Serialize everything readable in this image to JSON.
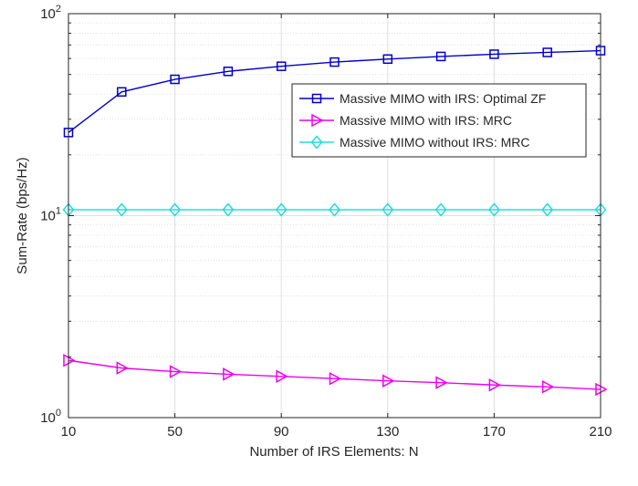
{
  "chart_data": {
    "type": "line",
    "title": "",
    "xlabel": "Number of IRS Elements: N",
    "ylabel": "Sum-Rate (bps/Hz)",
    "xlim": [
      10,
      210
    ],
    "ylim": [
      1,
      100
    ],
    "yscale": "log",
    "grid": true,
    "legend_position": "top-right",
    "x_ticks": [
      10,
      50,
      90,
      130,
      170,
      210
    ],
    "x_tick_labels": [
      "10",
      "50",
      "90",
      "130",
      "170",
      "210"
    ],
    "y_ticks": [
      {
        "base": "10",
        "exp": "0",
        "value": 1
      },
      {
        "base": "10",
        "exp": "1",
        "value": 10
      },
      {
        "base": "10",
        "exp": "2",
        "value": 100
      }
    ],
    "x": [
      10,
      30,
      50,
      70,
      90,
      110,
      130,
      150,
      170,
      190,
      210
    ],
    "series": [
      {
        "name": "Massive MIMO with IRS: Optimal ZF",
        "color": "#0000cc",
        "marker": "square",
        "values": [
          25.8,
          41.0,
          47.3,
          51.8,
          54.9,
          57.6,
          59.6,
          61.4,
          63.0,
          64.3,
          65.6
        ]
      },
      {
        "name": "Massive MIMO with IRS: MRC",
        "color": "#ee00ee",
        "marker": "triangle-right",
        "values": [
          1.92,
          1.76,
          1.69,
          1.64,
          1.6,
          1.56,
          1.52,
          1.49,
          1.45,
          1.42,
          1.38
        ]
      },
      {
        "name": "Massive MIMO without IRS: MRC",
        "color": "#22dddd",
        "marker": "diamond",
        "values": [
          10.7,
          10.7,
          10.7,
          10.7,
          10.7,
          10.7,
          10.7,
          10.7,
          10.7,
          10.7,
          10.7
        ]
      }
    ]
  }
}
